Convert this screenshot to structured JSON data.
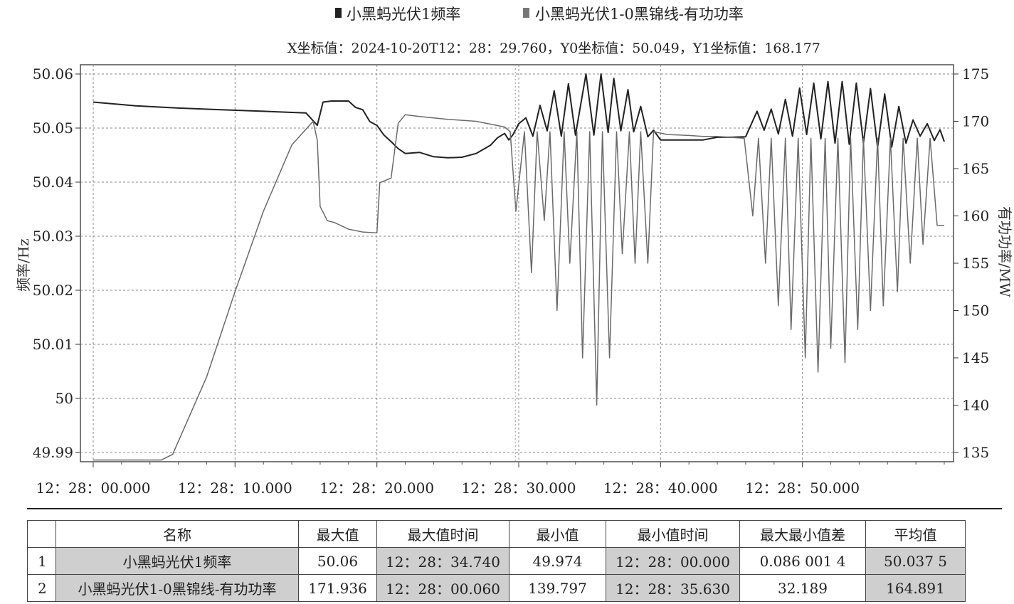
{
  "chart_data": {
    "type": "line",
    "legend": [
      {
        "name": "小黑蚂光伏1频率",
        "color": "#222222"
      },
      {
        "name": "小黑蚂光伏1-0黑锦线-有功功率",
        "color": "#777777"
      }
    ],
    "readout": "X坐标值：2024-10-20T12：28：29.760，Y0坐标值：50.049，Y1坐标值：168.177",
    "y0_label": "频率/Hz",
    "y1_label": "有功功率/MW",
    "y0_ticks": [
      "50.06",
      "50.05",
      "50.04",
      "50.03",
      "50.02",
      "50.01",
      "50",
      "49.99"
    ],
    "y1_ticks": [
      "175",
      "170",
      "165",
      "160",
      "155",
      "150",
      "145",
      "140",
      "135"
    ],
    "x_ticks": [
      "12：28：00.000",
      "12：28：10.000",
      "12：28：20.000",
      "12：28：30.000",
      "12：28：40.000",
      "12：28：50.000"
    ],
    "y0_range": [
      49.988,
      50.062
    ],
    "y1_range": [
      134.2,
      175.8
    ],
    "x_range": [
      0,
      60
    ],
    "grid": true,
    "cursor_x": 29.76,
    "series": [
      {
        "name": "小黑蚂光伏1频率",
        "axis": "y0",
        "color": "#222222",
        "x": [
          0,
          3,
          6,
          9,
          12,
          15,
          15.8,
          16.2,
          16.8,
          18,
          18.5,
          19,
          19.5,
          20,
          20.5,
          21,
          21.5,
          22,
          23,
          24,
          25,
          26,
          27,
          28,
          28.5,
          29,
          29.3,
          29.6,
          30,
          30.5,
          31,
          31.5,
          32,
          32.5,
          33,
          33.5,
          34,
          34.74,
          35.3,
          35.8,
          36.3,
          36.7,
          37.2,
          37.7,
          38.1,
          38.6,
          39.1,
          39.5,
          40,
          41,
          42,
          43,
          44,
          45,
          46,
          46.8,
          47.3,
          47.8,
          48.3,
          48.8,
          49.3,
          49.8,
          50.3,
          50.8,
          51.3,
          51.8,
          52.3,
          52.8,
          53.3,
          53.8,
          54.3,
          54.8,
          55.3,
          55.8,
          56.3,
          56.8,
          57.3,
          57.8,
          58.3,
          58.8,
          59.3,
          59.7,
          60
        ],
        "y": [
          50.0548,
          50.0541,
          50.0537,
          50.0534,
          50.0531,
          50.0528,
          50.0505,
          50.0548,
          50.055,
          50.055,
          50.0538,
          50.0534,
          50.0512,
          50.0505,
          50.0487,
          50.0475,
          50.0462,
          50.0453,
          50.0455,
          50.0447,
          50.0445,
          50.0446,
          50.0453,
          50.0468,
          50.0482,
          50.049,
          50.0478,
          50.0488,
          50.0508,
          50.0519,
          50.0485,
          50.0542,
          50.0495,
          50.0569,
          50.0485,
          50.0582,
          50.0487,
          50.06,
          50.0487,
          50.06,
          50.0492,
          50.0592,
          50.0495,
          50.0571,
          50.0493,
          50.054,
          50.0484,
          50.0496,
          50.0478,
          50.0478,
          50.0478,
          50.0478,
          50.0483,
          50.0483,
          50.0484,
          50.0531,
          50.0496,
          50.0535,
          50.0489,
          50.0553,
          50.0485,
          50.0574,
          50.0488,
          50.0583,
          50.048,
          50.0586,
          50.0472,
          50.0586,
          50.047,
          50.0583,
          50.0472,
          50.0573,
          50.0464,
          50.0563,
          50.0465,
          50.054,
          50.0472,
          50.0515,
          50.0485,
          50.0508,
          50.0477,
          50.0497,
          50.0475
        ]
      },
      {
        "name": "小黑蚂光伏1-0黑锦线-有功功率",
        "axis": "y1",
        "color": "#6a6a6a",
        "x": [
          0,
          4.8,
          5.6,
          8,
          10,
          12,
          14,
          15.5,
          15.8,
          16,
          16.5,
          17,
          18,
          19,
          20,
          20.2,
          21,
          21.5,
          22,
          23,
          25,
          27,
          29,
          29.4,
          29.8,
          30.4,
          30.9,
          31.3,
          31.8,
          32.2,
          32.7,
          33.2,
          33.6,
          34.1,
          34.5,
          35,
          35.5,
          35.9,
          36.4,
          36.9,
          37.3,
          37.8,
          38.2,
          38.6,
          39.1,
          39.5,
          40.5,
          42,
          43,
          44,
          45,
          45.9,
          46.5,
          46.9,
          47.4,
          47.8,
          48.3,
          48.8,
          49.2,
          49.7,
          50.2,
          50.6,
          51.1,
          51.6,
          52,
          52.5,
          53,
          53.4,
          53.9,
          54.3,
          54.8,
          55.3,
          55.7,
          56.2,
          56.7,
          57.1,
          57.6,
          58.1,
          58.5,
          59,
          59.5,
          60
        ],
        "y": [
          134.2,
          134.2,
          134.8,
          143,
          152,
          160.5,
          167.5,
          170,
          168,
          161,
          159.5,
          159.3,
          158.6,
          158.3,
          158.2,
          163.5,
          164,
          169.8,
          170.7,
          170.5,
          170.2,
          170.0,
          169.4,
          168.9,
          160.5,
          168.9,
          154,
          168.9,
          159.5,
          168.9,
          150,
          168.9,
          155,
          168.9,
          145,
          168.9,
          140,
          168.9,
          145,
          168.9,
          156,
          168.9,
          155,
          168.9,
          155,
          168.9,
          168.6,
          168.5,
          168.4,
          168.4,
          168.3,
          168.2,
          160,
          168.2,
          155,
          168.2,
          150.5,
          168.2,
          148,
          168.2,
          145,
          168.2,
          143.5,
          168.2,
          146,
          168.2,
          144.5,
          168.2,
          148,
          168.2,
          150,
          168.2,
          150.5,
          168.2,
          152,
          168.2,
          155,
          168.2,
          157,
          168.2,
          159,
          159
        ]
      }
    ]
  },
  "stats_table": {
    "headers": [
      "",
      "名称",
      "最大值",
      "最大值时间",
      "最小值",
      "最小值时间",
      "最大最小值差",
      "平均值"
    ],
    "rows": [
      [
        "1",
        "小黑蚂光伏1频率",
        "50.06",
        "12：28：34.740",
        "49.974",
        "12：28：00.000",
        "0.086 001 4",
        "50.037 5"
      ],
      [
        "2",
        "小黑蚂光伏1-0黑锦线-有功功率",
        "171.936",
        "12：28：00.060",
        "139.797",
        "12：28：35.630",
        "32.189",
        "164.891"
      ]
    ]
  }
}
